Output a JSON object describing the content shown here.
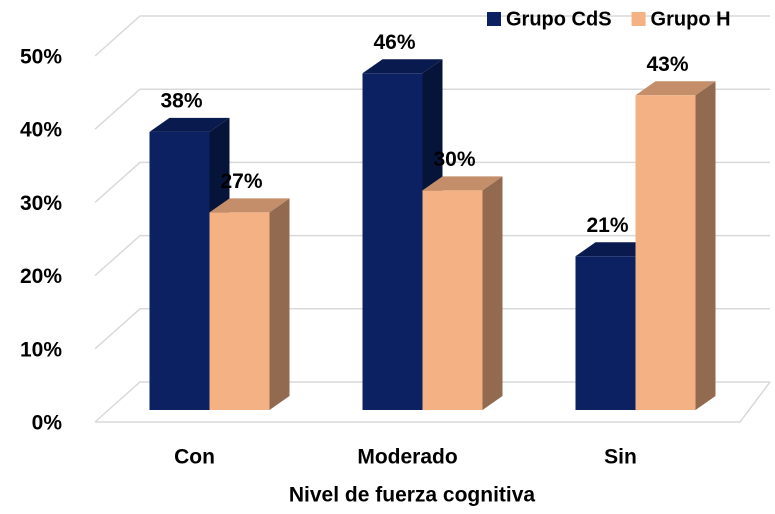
{
  "chart_data": {
    "type": "bar3d",
    "x_label": "Nivel de fuerza cognitiva",
    "categories": [
      "Con",
      "Moderado",
      "Sin"
    ],
    "series": [
      {
        "name": "Grupo CdS",
        "color": "#0b2161",
        "values": [
          38,
          46,
          21
        ],
        "value_labels": [
          "38%",
          "46%",
          "21%"
        ]
      },
      {
        "name": "Grupo H",
        "color": "#f4b183",
        "values": [
          27,
          30,
          43
        ],
        "value_labels": [
          "27%",
          "30%",
          "43%"
        ]
      }
    ],
    "ylim": [
      0,
      50
    ],
    "yticks": [
      {
        "value": 0,
        "label": "0%"
      },
      {
        "value": 10,
        "label": "10%"
      },
      {
        "value": 20,
        "label": "20%"
      },
      {
        "value": 30,
        "label": "30%"
      },
      {
        "value": 40,
        "label": "40%"
      },
      {
        "value": 50,
        "label": "50%"
      }
    ],
    "grid": true,
    "legend": "top-right"
  }
}
